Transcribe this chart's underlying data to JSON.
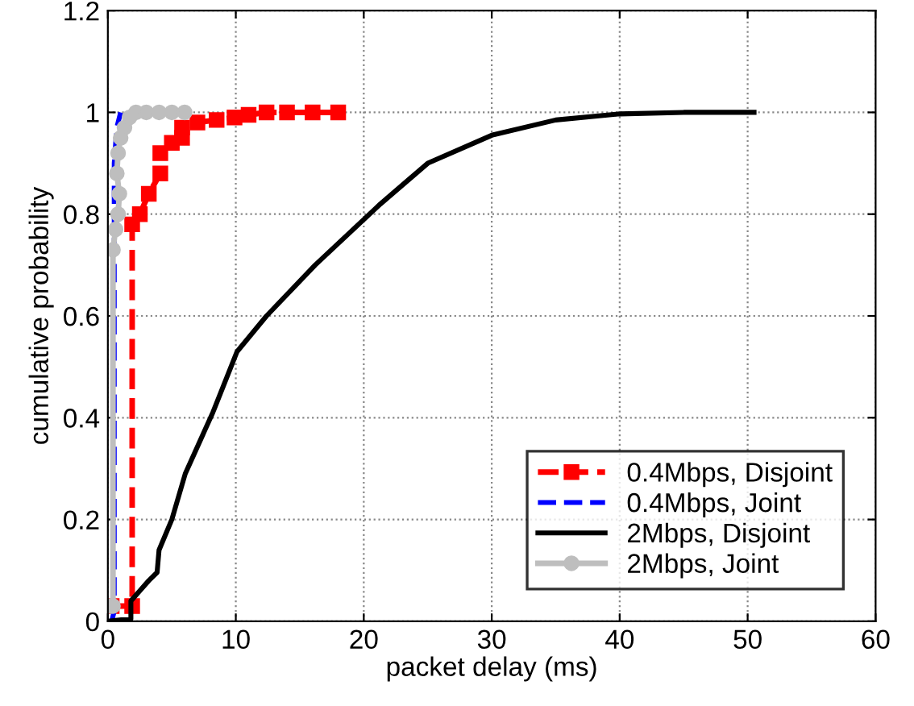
{
  "chart_data": {
    "type": "line",
    "xlabel": "packet delay (ms)",
    "ylabel": "cumulative probability",
    "xlim": [
      0,
      60
    ],
    "ylim": [
      0,
      1.2
    ],
    "xticks": [
      0,
      10,
      20,
      30,
      40,
      50,
      60
    ],
    "yticks": [
      0,
      0.2,
      0.4,
      0.6,
      0.8,
      1,
      1.2
    ],
    "grid": true,
    "legend": "bottom right",
    "series": [
      {
        "name": "0.4Mbps, Disjoint",
        "color": "#ff0000",
        "marker": "square",
        "line_style": "dashed",
        "x": [
          0.3,
          1.9,
          1.9,
          2.5,
          3.2,
          4.1,
          4.1,
          5,
          5.8,
          5.8,
          7,
          8.5,
          9.9,
          11,
          12.4,
          14,
          16,
          18
        ],
        "values": [
          0.03,
          0.03,
          0.78,
          0.8,
          0.84,
          0.88,
          0.92,
          0.94,
          0.95,
          0.97,
          0.98,
          0.985,
          0.99,
          0.995,
          1,
          1,
          1,
          1
        ]
      },
      {
        "name": "0.4Mbps, Joint",
        "color": "#0000ff",
        "line_style": "dashed",
        "marker": "none",
        "x": [
          0.3,
          0.5,
          0.5,
          0.7,
          1
        ],
        "values": [
          0,
          0.02,
          0.9,
          0.97,
          1
        ]
      },
      {
        "name": "2Mbps, Disjoint",
        "color": "#000000",
        "line_style": "solid",
        "marker": "none",
        "x": [
          0,
          1.8,
          1.8,
          2.5,
          3.2,
          3.85,
          4,
          5,
          6.05,
          8.2,
          10.1,
          12.4,
          16.2,
          21.3,
          25,
          30,
          35,
          40,
          45,
          50.5
        ],
        "values": [
          0,
          0.005,
          0.04,
          0.06,
          0.08,
          0.096,
          0.14,
          0.2,
          0.29,
          0.41,
          0.53,
          0.6,
          0.7,
          0.82,
          0.9,
          0.955,
          0.985,
          0.997,
          1,
          1
        ]
      },
      {
        "name": "2Mbps, Joint",
        "color": "#bebebe",
        "line_style": "solid",
        "marker": "circle",
        "x": [
          0.2,
          0.4,
          0.4,
          0.6,
          0.8,
          0.9,
          0.7,
          0.8,
          1,
          1.3,
          1.7,
          2.2,
          3,
          4,
          5,
          6
        ],
        "values": [
          0.03,
          0.03,
          0.73,
          0.77,
          0.8,
          0.84,
          0.88,
          0.92,
          0.95,
          0.97,
          0.99,
          1,
          1,
          1,
          1,
          1
        ]
      }
    ]
  }
}
